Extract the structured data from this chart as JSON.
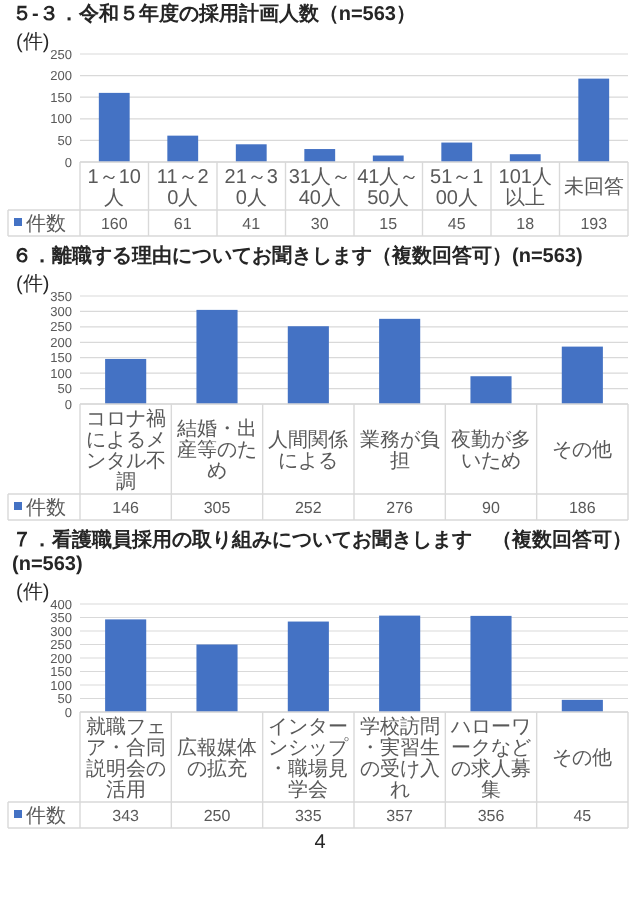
{
  "chart_data": [
    {
      "type": "bar",
      "title": "５-３．令和５年度の採用計画人数（n=563）",
      "ylabel": "(件)",
      "categories": [
        "1～10人",
        "11～20人",
        "21～30人",
        "31人～40人",
        "41人～50人",
        "51～100人",
        "101人以上",
        "未回答"
      ],
      "series": [
        {
          "name": "件数",
          "color": "#4472c4",
          "values": [
            160,
            61,
            41,
            30,
            15,
            45,
            18,
            193
          ]
        }
      ],
      "ylim": [
        0,
        250
      ],
      "yticks": [
        0,
        50,
        100,
        150,
        200,
        250
      ],
      "grid": "y",
      "data_labels": true
    },
    {
      "type": "bar",
      "title": "６．離職する理由についてお聞きします（複数回答可）(n=563)",
      "ylabel": "(件)",
      "categories": [
        "コロナ禍によるメンタル不調",
        "結婚・出産等のため",
        "人間関係による",
        "業務が負担",
        "夜勤が多いため",
        "その他"
      ],
      "series": [
        {
          "name": "件数",
          "color": "#4472c4",
          "values": [
            146,
            305,
            252,
            276,
            90,
            186
          ]
        }
      ],
      "ylim": [
        0,
        350
      ],
      "yticks": [
        0,
        50,
        100,
        150,
        200,
        250,
        300,
        350
      ],
      "grid": "y",
      "data_labels": true
    },
    {
      "type": "bar",
      "title": "７．看護職員採用の取り組みについてお聞きします　（複数回答可）(n=563)",
      "ylabel": "(件)",
      "categories": [
        "就職フェア・合同説明会の活用",
        "広報媒体の拡充",
        "インターンシップ・職場見学会",
        "学校訪問・実習生の受け入れ",
        "ハローワークなどの求人募集",
        "その他"
      ],
      "series": [
        {
          "name": "件数",
          "color": "#4472c4",
          "values": [
            343,
            250,
            335,
            357,
            356,
            45
          ]
        }
      ],
      "ylim": [
        0,
        400
      ],
      "yticks": [
        0,
        50,
        100,
        150,
        200,
        250,
        300,
        350,
        400
      ],
      "grid": "y",
      "data_labels": true,
      "annotations": [
        "4"
      ]
    }
  ]
}
